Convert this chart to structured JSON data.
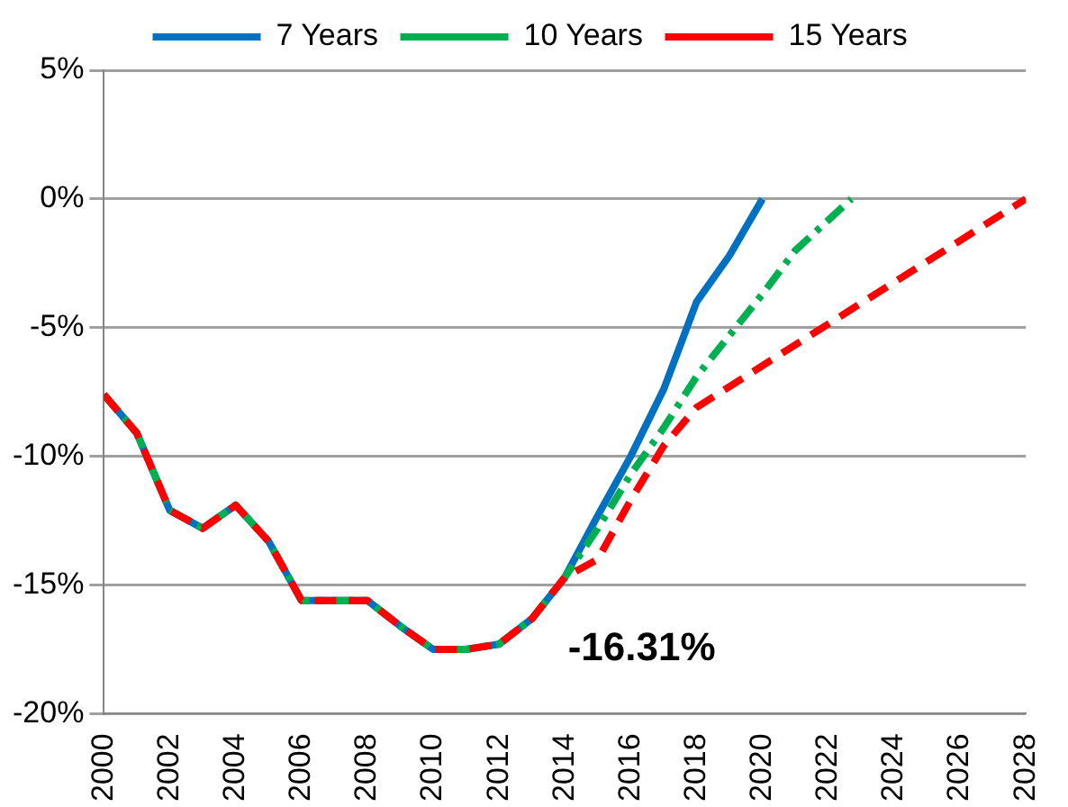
{
  "chart_data": {
    "type": "line",
    "legend": "top",
    "grid": "y",
    "marker": "none",
    "xlim": [
      2000,
      2028
    ],
    "xticks": [
      2000,
      2002,
      2004,
      2006,
      2008,
      2010,
      2012,
      2014,
      2016,
      2018,
      2020,
      2022,
      2024,
      2026,
      2028
    ],
    "ylim": [
      -20,
      5
    ],
    "yticks": [
      {
        "value": -20,
        "label": "-20%"
      },
      {
        "value": -15,
        "label": "-15%"
      },
      {
        "value": -10,
        "label": "-10%"
      },
      {
        "value": -5,
        "label": "-5%"
      },
      {
        "value": 0,
        "label": "0%"
      },
      {
        "value": 5,
        "label": "5%"
      }
    ],
    "annotations": [
      {
        "text": "-16.31%",
        "x": 2013,
        "y": -16.31
      }
    ],
    "series": [
      {
        "name": "15 Years",
        "color": "#ff0000",
        "line_style": "dashed",
        "x": [
          2000,
          2001,
          2002,
          2003,
          2004,
          2005,
          2006,
          2007,
          2008,
          2009,
          2010,
          2011,
          2012,
          2013,
          2014,
          2015,
          2016,
          2017,
          2018,
          2028
        ],
        "values": [
          -7.6,
          -9.1,
          -12.1,
          -12.8,
          -11.9,
          -13.3,
          -15.6,
          -15.6,
          -15.6,
          -16.6,
          -17.5,
          -17.5,
          -17.3,
          -16.31,
          -14.7,
          -14.0,
          -11.7,
          -9.6,
          -8.1,
          0
        ]
      },
      {
        "name": "10 Years",
        "color": "#00b050",
        "line_style": "dashdot",
        "x": [
          2000,
          2001,
          2002,
          2003,
          2004,
          2005,
          2006,
          2007,
          2008,
          2009,
          2010,
          2011,
          2012,
          2013,
          2014,
          2015,
          2016,
          2017,
          2018,
          2019,
          2020,
          2021,
          2022.7
        ],
        "values": [
          -7.6,
          -9.1,
          -12.1,
          -12.8,
          -11.9,
          -13.3,
          -15.6,
          -15.6,
          -15.6,
          -16.6,
          -17.5,
          -17.5,
          -17.3,
          -16.31,
          -14.7,
          -12.8,
          -10.7,
          -8.9,
          -6.9,
          -5.3,
          -3.7,
          -2.0,
          0
        ]
      },
      {
        "name": "7 Years",
        "color": "#0070c0",
        "line_style": "solid",
        "x": [
          2000,
          2001,
          2002,
          2003,
          2004,
          2005,
          2006,
          2007,
          2008,
          2009,
          2010,
          2011,
          2012,
          2013,
          2014,
          2015,
          2016,
          2017,
          2018,
          2019,
          2020
        ],
        "values": [
          -7.6,
          -9.1,
          -12.1,
          -12.8,
          -11.9,
          -13.3,
          -15.6,
          -15.6,
          -15.6,
          -16.6,
          -17.5,
          -17.5,
          -17.3,
          -16.31,
          -14.7,
          -12.3,
          -10.0,
          -7.4,
          -4.0,
          -2.2,
          0
        ]
      }
    ]
  }
}
